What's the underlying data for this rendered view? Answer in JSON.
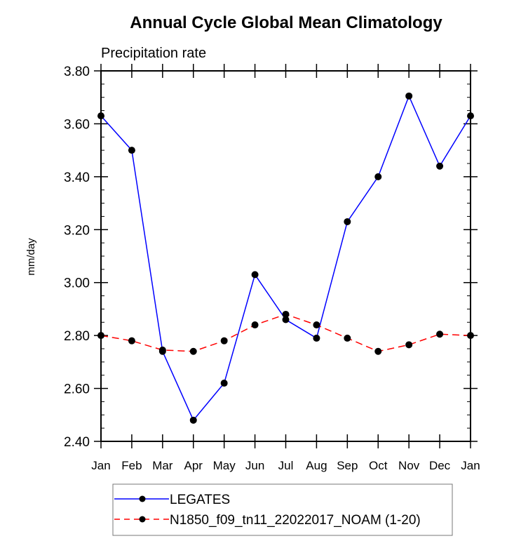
{
  "chart_data": {
    "type": "line",
    "title": "Annual Cycle Global Mean Climatology",
    "subtitle": "Precipitation rate",
    "xlabel": "",
    "ylabel": "mm/day",
    "ylim": [
      2.4,
      3.8
    ],
    "yticks": [
      "2.40",
      "2.60",
      "2.80",
      "3.00",
      "3.20",
      "3.40",
      "3.60",
      "3.80"
    ],
    "yminor_step": 0.05,
    "categories": [
      "Jan",
      "Feb",
      "Mar",
      "Apr",
      "May",
      "Jun",
      "Jul",
      "Aug",
      "Sep",
      "Oct",
      "Nov",
      "Dec",
      "Jan"
    ],
    "grid": false,
    "legend_position": "bottom",
    "series": [
      {
        "name": "LEGATES",
        "color": "#0000ff",
        "dash": "solid",
        "marker": "dot",
        "values": [
          3.63,
          3.5,
          2.74,
          2.48,
          2.62,
          3.03,
          2.86,
          2.79,
          3.23,
          3.4,
          3.705,
          3.44,
          3.63
        ]
      },
      {
        "name": "N1850_f09_tn11_22022017_NOAM (1-20)",
        "color": "#ff0000",
        "dash": "dashed",
        "marker": "dot",
        "values": [
          2.8,
          2.78,
          2.745,
          2.74,
          2.78,
          2.84,
          2.88,
          2.84,
          2.79,
          2.74,
          2.765,
          2.805,
          2.8
        ]
      }
    ]
  }
}
